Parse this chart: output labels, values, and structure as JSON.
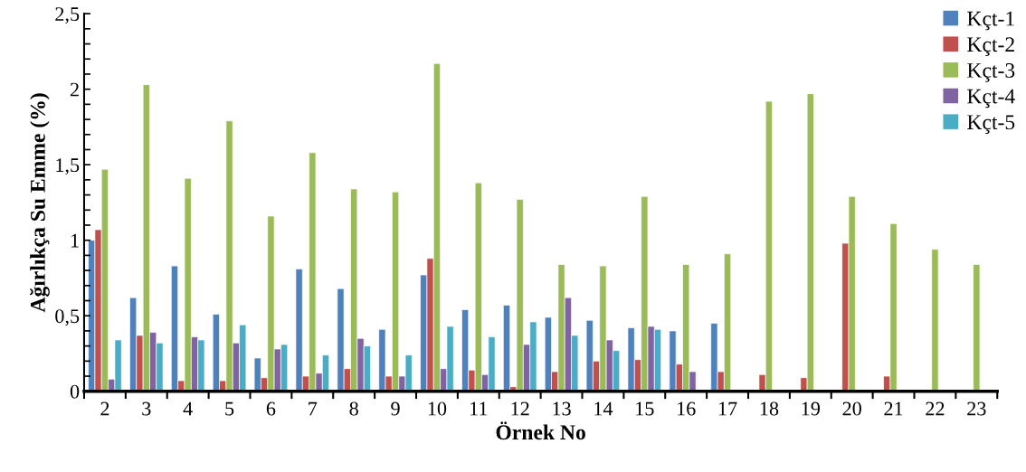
{
  "chart_data": {
    "type": "bar",
    "xlabel": "Örnek No",
    "ylabel": "Ağırlıkça Su Emme (%)",
    "categories": [
      "2",
      "3",
      "4",
      "5",
      "6",
      "7",
      "8",
      "9",
      "10",
      "11",
      "12",
      "13",
      "14",
      "15",
      "16",
      "17",
      "18",
      "19",
      "20",
      "21",
      "22",
      "23"
    ],
    "series": [
      {
        "name": "Kçt-1",
        "color": "#4f81bd",
        "values": [
          1.0,
          0.62,
          0.83,
          0.51,
          0.22,
          0.81,
          0.68,
          0.41,
          0.77,
          0.54,
          0.57,
          0.49,
          0.47,
          0.42,
          0.4,
          0.45,
          null,
          null,
          null,
          null,
          null,
          null
        ]
      },
      {
        "name": "Kçt-2",
        "color": "#c0504d",
        "values": [
          1.07,
          0.37,
          0.07,
          0.07,
          0.09,
          0.1,
          0.15,
          0.1,
          0.88,
          0.14,
          0.03,
          0.13,
          0.2,
          0.21,
          0.18,
          0.13,
          0.11,
          0.09,
          0.98,
          0.1,
          null,
          null
        ]
      },
      {
        "name": "Kçt-3",
        "color": "#9bbb59",
        "values": [
          1.47,
          2.03,
          1.41,
          1.79,
          1.16,
          1.58,
          1.34,
          1.32,
          2.17,
          1.38,
          1.27,
          0.84,
          0.83,
          1.29,
          0.84,
          0.91,
          1.92,
          1.97,
          1.29,
          1.11,
          0.94,
          0.84
        ]
      },
      {
        "name": "Kçt-4",
        "color": "#8064a2",
        "values": [
          0.08,
          0.39,
          0.36,
          0.32,
          0.28,
          0.12,
          0.35,
          0.1,
          0.15,
          0.11,
          0.31,
          0.62,
          0.34,
          0.43,
          0.13,
          null,
          null,
          null,
          null,
          null,
          null,
          null
        ]
      },
      {
        "name": "Kçt-5",
        "color": "#4bacc6",
        "values": [
          0.34,
          0.32,
          0.34,
          0.44,
          0.31,
          0.24,
          0.3,
          0.24,
          0.43,
          0.36,
          0.46,
          0.37,
          0.27,
          0.41,
          null,
          null,
          null,
          null,
          null,
          null,
          null,
          null
        ]
      }
    ],
    "ylim": [
      0,
      2.5
    ],
    "yticks": [
      0,
      {
        "value": 0.5,
        "label": "0,5"
      },
      1,
      {
        "value": 1.5,
        "label": "1,5"
      },
      2,
      {
        "value": 2.5,
        "label": "2,5"
      }
    ],
    "grid": false,
    "legend": "top right"
  }
}
